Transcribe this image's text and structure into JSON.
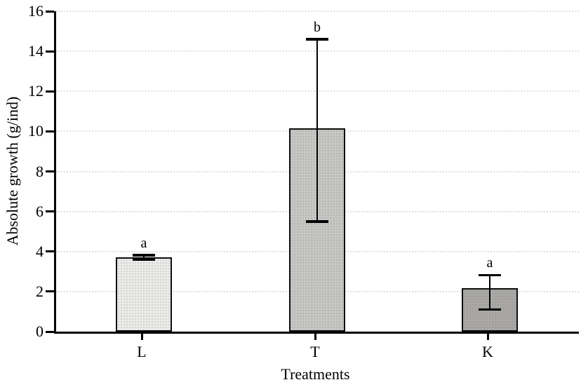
{
  "chart_data": {
    "type": "bar",
    "xlabel": "Treatments",
    "ylabel": "Absolute growth (g/ind)",
    "categories": [
      "L",
      "T",
      "K"
    ],
    "values": [
      3.7,
      10.15,
      2.16
    ],
    "errors_plus": [
      0.12,
      4.45,
      0.67
    ],
    "errors_minus": [
      0.12,
      4.65,
      1.05
    ],
    "sig_labels": [
      "a",
      "b",
      "a"
    ],
    "bar_colors": [
      "#ebebe9",
      "#c6c6c4",
      "#a9a8a6"
    ],
    "ylim": [
      0,
      16
    ],
    "yticks": [
      0,
      2,
      4,
      6,
      8,
      10,
      12,
      14,
      16
    ],
    "grid": "horizontal-dotted",
    "legend": "none",
    "axis_color": "#000000",
    "grid_color": "#e0e0e0",
    "error_bar_color": "#000000"
  }
}
